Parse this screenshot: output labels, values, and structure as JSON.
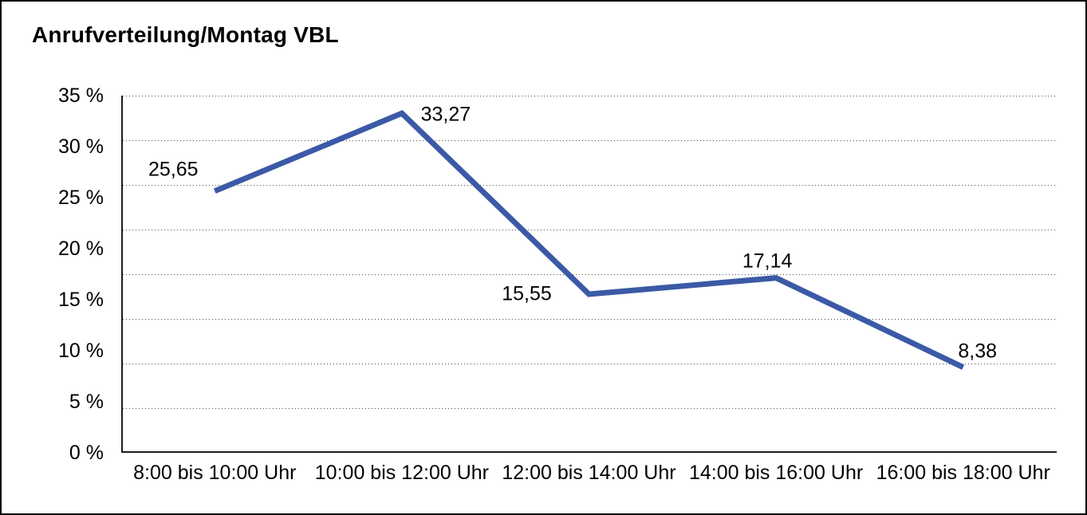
{
  "title": "Anrufverteilung/Montag VBL",
  "chart_data": {
    "type": "line",
    "title": "Anrufverteilung/Montag VBL",
    "categories": [
      "8:00 bis 10:00 Uhr",
      "10:00 bis 12:00 Uhr",
      "12:00 bis 14:00 Uhr",
      "14:00 bis 16:00 Uhr",
      "16:00 bis 18:00 Uhr"
    ],
    "values": [
      25.65,
      33.27,
      15.55,
      17.14,
      8.38
    ],
    "point_labels": [
      "25,65",
      "33,27",
      "15,55",
      "17,14",
      "8,38"
    ],
    "y_tick_labels": [
      "35 %",
      "30 %",
      "25 %",
      "20 %",
      "15 %",
      "10 %",
      "5 %",
      "0 %"
    ],
    "ylim": [
      0,
      35
    ],
    "xlabel": "",
    "ylabel": "",
    "grid": "horizontal-dotted",
    "legend": "none",
    "line_color": "#3B5AA6",
    "axis_color": "#1d1d1d",
    "background_color": "#ffffff"
  }
}
